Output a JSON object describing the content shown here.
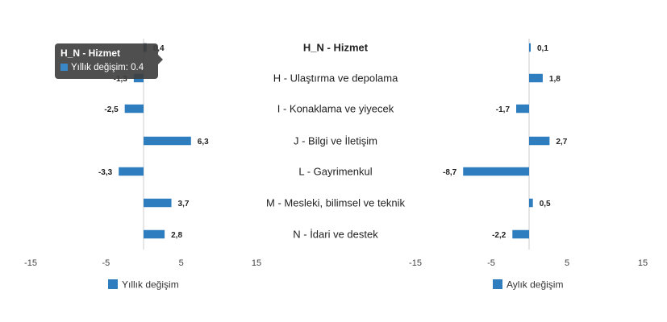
{
  "colors": {
    "bar": "#2e7dbf",
    "axis": "#cccccc",
    "highlight": "#1f3f5c"
  },
  "categories_panel": {
    "items": [
      {
        "label": "H_N - Hizmet",
        "bold": true
      },
      {
        "label": "H - Ulaştırma ve depolama",
        "bold": false
      },
      {
        "label": "I - Konaklama ve yiyecek",
        "bold": false
      },
      {
        "label": "J - Bilgi ve İletişim",
        "bold": false
      },
      {
        "label": "L - Gayrimenkul",
        "bold": false
      },
      {
        "label": "M - Mesleki, bilimsel ve teknik",
        "bold": false
      },
      {
        "label": "N - İdari ve destek",
        "bold": false
      }
    ]
  },
  "tooltip": {
    "title": "H_N - Hizmet",
    "text": "Yıllık değişim: 0.4"
  },
  "chart_data": [
    {
      "type": "bar",
      "orientation": "horizontal",
      "categories": [
        "H_N - Hizmet",
        "H - Ulaştırma ve depolama",
        "I - Konaklama ve yiyecek",
        "J - Bilgi ve İletişim",
        "L - Gayrimenkul",
        "M - Mesleki, bilimsel ve teknik",
        "N - İdari ve destek"
      ],
      "series": [
        {
          "name": "Yıllık değişim",
          "values": [
            0.4,
            -1.3,
            -2.5,
            6.3,
            -3.3,
            3.7,
            2.8
          ]
        }
      ],
      "data_labels": [
        "0,4",
        "-1,3",
        "-2,5",
        "6,3",
        "-3,3",
        "3,7",
        "2,8"
      ],
      "xlim": [
        -15,
        15
      ],
      "ticks": [
        -15,
        -5,
        5,
        15
      ],
      "tick_labels": [
        "-15",
        "-5",
        "5",
        "15"
      ],
      "legend": "bottom-left",
      "highlighted_index": 0
    },
    {
      "type": "bar",
      "orientation": "horizontal",
      "categories": [
        "H_N - Hizmet",
        "H - Ulaştırma ve depolama",
        "I - Konaklama ve yiyecek",
        "J - Bilgi ve İletişim",
        "L - Gayrimenkul",
        "M - Mesleki, bilimsel ve teknik",
        "N - İdari ve destek"
      ],
      "series": [
        {
          "name": "Aylık değişim",
          "values": [
            0.1,
            1.8,
            -1.7,
            2.7,
            -8.7,
            0.5,
            -2.2
          ]
        }
      ],
      "data_labels": [
        "0,1",
        "1,8",
        "-1,7",
        "2,7",
        "-8,7",
        "0,5",
        "-2,2"
      ],
      "xlim": [
        -15,
        15
      ],
      "ticks": [
        -15,
        -5,
        5,
        15
      ],
      "tick_labels": [
        "-15",
        "-5",
        "5",
        "15"
      ],
      "legend": "bottom-left",
      "highlighted_index": -1
    }
  ]
}
